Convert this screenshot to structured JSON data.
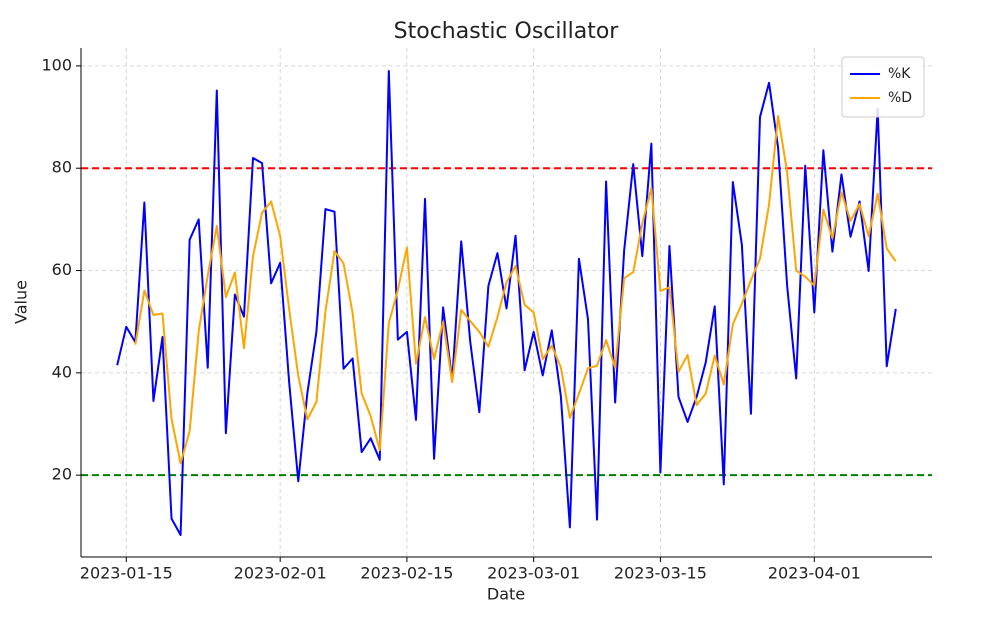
{
  "chart_data": {
    "type": "line",
    "title": "Stochastic Oscillator",
    "x_label": "Date",
    "y_label": "Value",
    "x": [
      "2023-01-14",
      "2023-01-15",
      "2023-01-16",
      "2023-01-17",
      "2023-01-18",
      "2023-01-19",
      "2023-01-20",
      "2023-01-21",
      "2023-01-22",
      "2023-01-23",
      "2023-01-24",
      "2023-01-25",
      "2023-01-26",
      "2023-01-27",
      "2023-01-28",
      "2023-01-29",
      "2023-01-30",
      "2023-01-31",
      "2023-02-01",
      "2023-02-02",
      "2023-02-03",
      "2023-02-04",
      "2023-02-05",
      "2023-02-06",
      "2023-02-07",
      "2023-02-08",
      "2023-02-09",
      "2023-02-10",
      "2023-02-11",
      "2023-02-12",
      "2023-02-13",
      "2023-02-14",
      "2023-02-15",
      "2023-02-16",
      "2023-02-17",
      "2023-02-18",
      "2023-02-19",
      "2023-02-20",
      "2023-02-21",
      "2023-02-22",
      "2023-02-23",
      "2023-02-24",
      "2023-02-25",
      "2023-02-26",
      "2023-02-27",
      "2023-02-28",
      "2023-03-01",
      "2023-03-02",
      "2023-03-03",
      "2023-03-04",
      "2023-03-05",
      "2023-03-06",
      "2023-03-07",
      "2023-03-08",
      "2023-03-09",
      "2023-03-10",
      "2023-03-11",
      "2023-03-12",
      "2023-03-13",
      "2023-03-14",
      "2023-03-15",
      "2023-03-16",
      "2023-03-17",
      "2023-03-18",
      "2023-03-19",
      "2023-03-20",
      "2023-03-21",
      "2023-03-22",
      "2023-03-23",
      "2023-03-24",
      "2023-03-25",
      "2023-03-26",
      "2023-03-27",
      "2023-03-28",
      "2023-03-29",
      "2023-03-30",
      "2023-03-31",
      "2023-04-01",
      "2023-04-02",
      "2023-04-03",
      "2023-04-04",
      "2023-04-05",
      "2023-04-06",
      "2023-04-07",
      "2023-04-08",
      "2023-04-09",
      "2023-04-10"
    ],
    "series": [
      {
        "name": "%K",
        "color": "#0000ff",
        "values": [
          41.5,
          49,
          46,
          73.3,
          34.5,
          47,
          11.5,
          8.3,
          66,
          70,
          41,
          95.2,
          28.2,
          55.3,
          51,
          82,
          81,
          57.5,
          61.5,
          38,
          18.8,
          36,
          48,
          72,
          71.5,
          40.8,
          42.8,
          24.5,
          27.2,
          23,
          99,
          46.5,
          48,
          30.8,
          74,
          23.2,
          52.8,
          38.5,
          65.7,
          46,
          32.3,
          57,
          63.4,
          52.6,
          66.8,
          40.5,
          48,
          39.5,
          48.3,
          35.5,
          9.8,
          62.3,
          50.5,
          11.3,
          77.4,
          34.2,
          64,
          80.8,
          62.8,
          84.8,
          20.5,
          64.8,
          35.3,
          30.4,
          35.3,
          42,
          53,
          18.2,
          77.3,
          65,
          32,
          90,
          96.7,
          84,
          57,
          38.9,
          80.5,
          51.8,
          83.5,
          63.7,
          78.8,
          66.6,
          73.5,
          59.9,
          91.6,
          41.3,
          52.5
        ]
      },
      {
        "name": "%D",
        "color": "#ffa500",
        "values": [
          null,
          null,
          45.5,
          56.1,
          51.3,
          51.6,
          31,
          22.3,
          28.6,
          48.1,
          59,
          68.7,
          54.8,
          59.6,
          44.8,
          62.8,
          71.3,
          73.5,
          66.7,
          52.3,
          39.4,
          30.9,
          34.3,
          52,
          63.8,
          61.4,
          51.7,
          36,
          31.5,
          24.9,
          49.7,
          56.2,
          64.5,
          41.8,
          50.9,
          42.7,
          50,
          38.2,
          52.3,
          50.1,
          48,
          45.1,
          50.9,
          57.7,
          60.9,
          53.3,
          51.8,
          42.7,
          45.3,
          41.1,
          31.2,
          35.9,
          40.9,
          41.4,
          46.4,
          41,
          58.5,
          59.7,
          69.2,
          76.1,
          56,
          56.7,
          40.2,
          43.5,
          33.7,
          35.9,
          43.4,
          37.7,
          49.5,
          53.5,
          58.1,
          62.3,
          72.9,
          90.2,
          79.2,
          60,
          58.8,
          57.1,
          71.9,
          66.3,
          75.3,
          69.7,
          73,
          66.7,
          75,
          64.3,
          61.8
        ]
      }
    ],
    "hlines": [
      {
        "value": 80,
        "color": "#ff0000"
      },
      {
        "value": 20,
        "color": "#008000"
      }
    ],
    "xlim": [
      "2023-01-10",
      "2023-04-14"
    ],
    "xticks": [
      "2023-01-15",
      "2023-02-01",
      "2023-02-15",
      "2023-03-01",
      "2023-03-15",
      "2023-04-01"
    ],
    "ylim": [
      4,
      103.5
    ],
    "yticks": [
      20,
      40,
      60,
      80,
      100
    ],
    "grid": true,
    "legend": "upper right"
  }
}
